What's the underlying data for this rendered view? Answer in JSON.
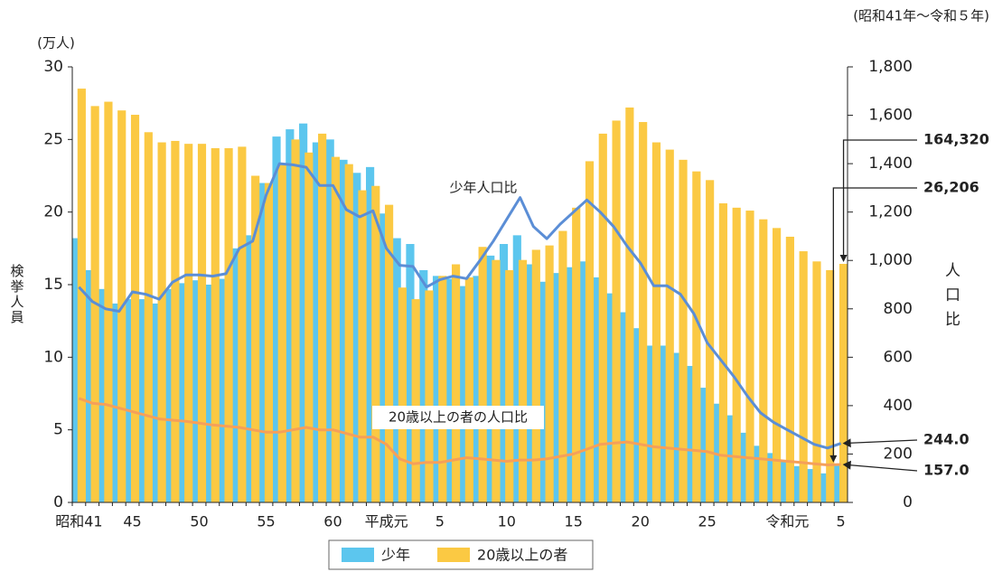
{
  "chart_data": {
    "type": "combo",
    "period_note": "(昭和41年～令和５年)",
    "y_unit": "(万人)",
    "ylabel": "検挙人員",
    "y2label": "人口比",
    "categories": [
      "昭和41",
      null,
      null,
      null,
      "45",
      null,
      null,
      null,
      null,
      "50",
      null,
      null,
      null,
      null,
      "55",
      null,
      null,
      null,
      null,
      "60",
      null,
      null,
      null,
      "平成元",
      null,
      null,
      null,
      "5",
      null,
      null,
      null,
      null,
      "10",
      null,
      null,
      null,
      null,
      "15",
      null,
      null,
      null,
      null,
      "20",
      null,
      null,
      null,
      null,
      "25",
      null,
      null,
      null,
      null,
      null,
      "令和元",
      null,
      null,
      null,
      "5"
    ],
    "ylim": [
      0,
      30
    ],
    "yticks": [
      0,
      5,
      10,
      15,
      20,
      25,
      30
    ],
    "y2lim": [
      0,
      1800
    ],
    "y2ticks": [
      0,
      200,
      400,
      600,
      800,
      {
        "value": 1000,
        "label": "1,000"
      },
      {
        "value": 1200,
        "label": "1,200"
      },
      {
        "value": 1400,
        "label": "1,400"
      },
      {
        "value": 1600,
        "label": "1,600"
      },
      {
        "value": 1800,
        "label": "1,800"
      }
    ],
    "series": [
      {
        "name": "少年",
        "type": "bar",
        "color": "#5cc6ee",
        "values": [
          18.2,
          16.0,
          14.7,
          13.7,
          14.0,
          14.0,
          13.7,
          14.7,
          15.1,
          15.3,
          15.0,
          15.4,
          17.5,
          18.4,
          22.0,
          25.2,
          25.7,
          26.1,
          24.8,
          25.0,
          23.6,
          22.7,
          23.1,
          19.9,
          18.2,
          17.8,
          16.0,
          15.6,
          15.4,
          14.9,
          15.6,
          17.0,
          17.8,
          18.4,
          16.4,
          15.2,
          15.8,
          16.2,
          16.6,
          15.5,
          14.4,
          13.1,
          12.0,
          10.8,
          10.8,
          10.3,
          9.4,
          7.9,
          6.8,
          6.0,
          4.8,
          3.9,
          3.4,
          2.8,
          2.5,
          2.3,
          2.0,
          2.6206
        ],
        "value_labels": [
          null,
          null,
          null,
          null,
          null,
          null,
          null,
          null,
          null,
          null,
          null,
          null,
          null,
          null,
          null,
          null,
          null,
          null,
          null,
          null,
          null,
          null,
          null,
          null,
          null,
          null,
          null,
          null,
          null,
          null,
          null,
          null,
          null,
          null,
          null,
          null,
          null,
          null,
          null,
          null,
          null,
          null,
          null,
          null,
          null,
          null,
          null,
          null,
          null,
          null,
          null,
          null,
          null,
          null,
          null,
          null,
          null,
          "26,206"
        ]
      },
      {
        "name": "20歳以上の者",
        "type": "bar",
        "color": "#fbc943",
        "values": [
          28.5,
          27.3,
          27.6,
          27.0,
          26.7,
          25.5,
          24.8,
          24.9,
          24.7,
          24.7,
          24.4,
          24.4,
          24.5,
          22.5,
          22.0,
          23.3,
          25.0,
          24.1,
          25.4,
          23.8,
          23.3,
          21.5,
          21.8,
          20.5,
          14.8,
          14.0,
          14.6,
          15.6,
          16.4,
          15.5,
          17.6,
          16.7,
          16.0,
          16.7,
          17.4,
          17.7,
          18.7,
          20.3,
          23.5,
          25.4,
          26.3,
          27.2,
          26.2,
          24.8,
          24.3,
          23.6,
          22.8,
          22.2,
          20.6,
          20.3,
          20.1,
          19.5,
          18.9,
          18.3,
          17.3,
          16.6,
          16.0,
          16.432
        ],
        "value_labels": [
          null,
          null,
          null,
          null,
          null,
          null,
          null,
          null,
          null,
          null,
          null,
          null,
          null,
          null,
          null,
          null,
          null,
          null,
          null,
          null,
          null,
          null,
          null,
          null,
          null,
          null,
          null,
          null,
          null,
          null,
          null,
          null,
          null,
          null,
          null,
          null,
          null,
          null,
          null,
          null,
          null,
          null,
          null,
          null,
          null,
          null,
          null,
          null,
          null,
          null,
          null,
          null,
          null,
          null,
          null,
          null,
          null,
          "164,320"
        ]
      },
      {
        "name": "少年人口比",
        "type": "line",
        "axis": "y2",
        "color": "#5b8ed6",
        "values": [
          890,
          830,
          800,
          790,
          870,
          860,
          840,
          910,
          940,
          940,
          935,
          945,
          1050,
          1080,
          1270,
          1400,
          1395,
          1385,
          1310,
          1310,
          1210,
          1180,
          1205,
          1050,
          980,
          975,
          890,
          920,
          935,
          925,
          1000,
          1080,
          1170,
          1260,
          1140,
          1090,
          1150,
          1200,
          1250,
          1200,
          1140,
          1060,
          990,
          895,
          895,
          860,
          780,
          660,
          590,
          520,
          440,
          370,
          330,
          300,
          270,
          240,
          225,
          244
        ],
        "value_labels": [
          null,
          null,
          null,
          null,
          null,
          null,
          null,
          null,
          null,
          null,
          null,
          null,
          null,
          null,
          null,
          null,
          null,
          null,
          null,
          null,
          null,
          null,
          null,
          null,
          null,
          null,
          null,
          null,
          null,
          null,
          null,
          null,
          null,
          null,
          null,
          null,
          null,
          null,
          null,
          null,
          null,
          null,
          null,
          null,
          null,
          null,
          null,
          null,
          null,
          null,
          null,
          null,
          null,
          null,
          null,
          null,
          null,
          "244.0"
        ]
      },
      {
        "name": "20歳以上の者の人口比",
        "type": "line",
        "axis": "y2",
        "color": "#f5a05a",
        "values": [
          430,
          410,
          405,
          390,
          375,
          360,
          345,
          340,
          335,
          328,
          320,
          315,
          310,
          300,
          290,
          290,
          300,
          310,
          300,
          300,
          285,
          270,
          270,
          240,
          180,
          160,
          165,
          165,
          175,
          185,
          180,
          175,
          170,
          175,
          175,
          180,
          190,
          200,
          220,
          240,
          245,
          250,
          240,
          230,
          225,
          220,
          215,
          210,
          195,
          190,
          185,
          180,
          175,
          170,
          165,
          160,
          155,
          157
        ],
        "value_labels": [
          null,
          null,
          null,
          null,
          null,
          null,
          null,
          null,
          null,
          null,
          null,
          null,
          null,
          null,
          null,
          null,
          null,
          null,
          null,
          null,
          null,
          null,
          null,
          null,
          null,
          null,
          null,
          null,
          null,
          null,
          null,
          null,
          null,
          null,
          null,
          null,
          null,
          null,
          null,
          null,
          null,
          null,
          null,
          null,
          null,
          null,
          null,
          null,
          null,
          null,
          null,
          null,
          null,
          null,
          null,
          null,
          null,
          "157.0"
        ]
      }
    ]
  }
}
